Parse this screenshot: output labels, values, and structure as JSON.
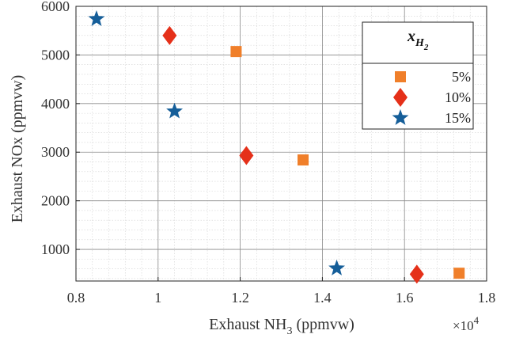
{
  "chart_data": {
    "type": "scatter",
    "xlabel_main": "Exhaust NH",
    "xlabel_sub": "3",
    "xlabel_tail": " (ppmvw)",
    "ylabel": "Exhaust NOx (ppmvw)",
    "x_multiplier": "×10",
    "x_multiplier_exp": "4",
    "xlim": [
      0.8,
      1.8
    ],
    "ylim": [
      350,
      6000
    ],
    "xticks": [
      0.8,
      1.0,
      1.2,
      1.4,
      1.6,
      1.8
    ],
    "xtick_labels": [
      "0.8",
      "1",
      "1.2",
      "1.4",
      "1.6",
      "1.8"
    ],
    "yticks": [
      1000,
      2000,
      3000,
      4000,
      5000,
      6000
    ],
    "ytick_labels": [
      "1000",
      "2000",
      "3000",
      "4000",
      "5000",
      "6000"
    ],
    "grid": true,
    "minor_grid": true,
    "legend": {
      "placement": "top-right",
      "title_main": "x",
      "title_sub": "H",
      "title_subsub": "2"
    },
    "series": [
      {
        "name": "5%",
        "marker": "square",
        "color": "#f07f2a",
        "points": [
          [
            1.19,
            5070
          ],
          [
            1.353,
            2840
          ],
          [
            1.733,
            510
          ]
        ]
      },
      {
        "name": "10%",
        "marker": "diamond",
        "color": "#e53019",
        "points": [
          [
            1.028,
            5400
          ],
          [
            1.215,
            2930
          ],
          [
            1.63,
            490
          ]
        ]
      },
      {
        "name": "15%",
        "marker": "star",
        "color": "#155e99",
        "points": [
          [
            0.85,
            5740
          ],
          [
            1.04,
            3840
          ],
          [
            1.435,
            610
          ]
        ]
      }
    ]
  }
}
